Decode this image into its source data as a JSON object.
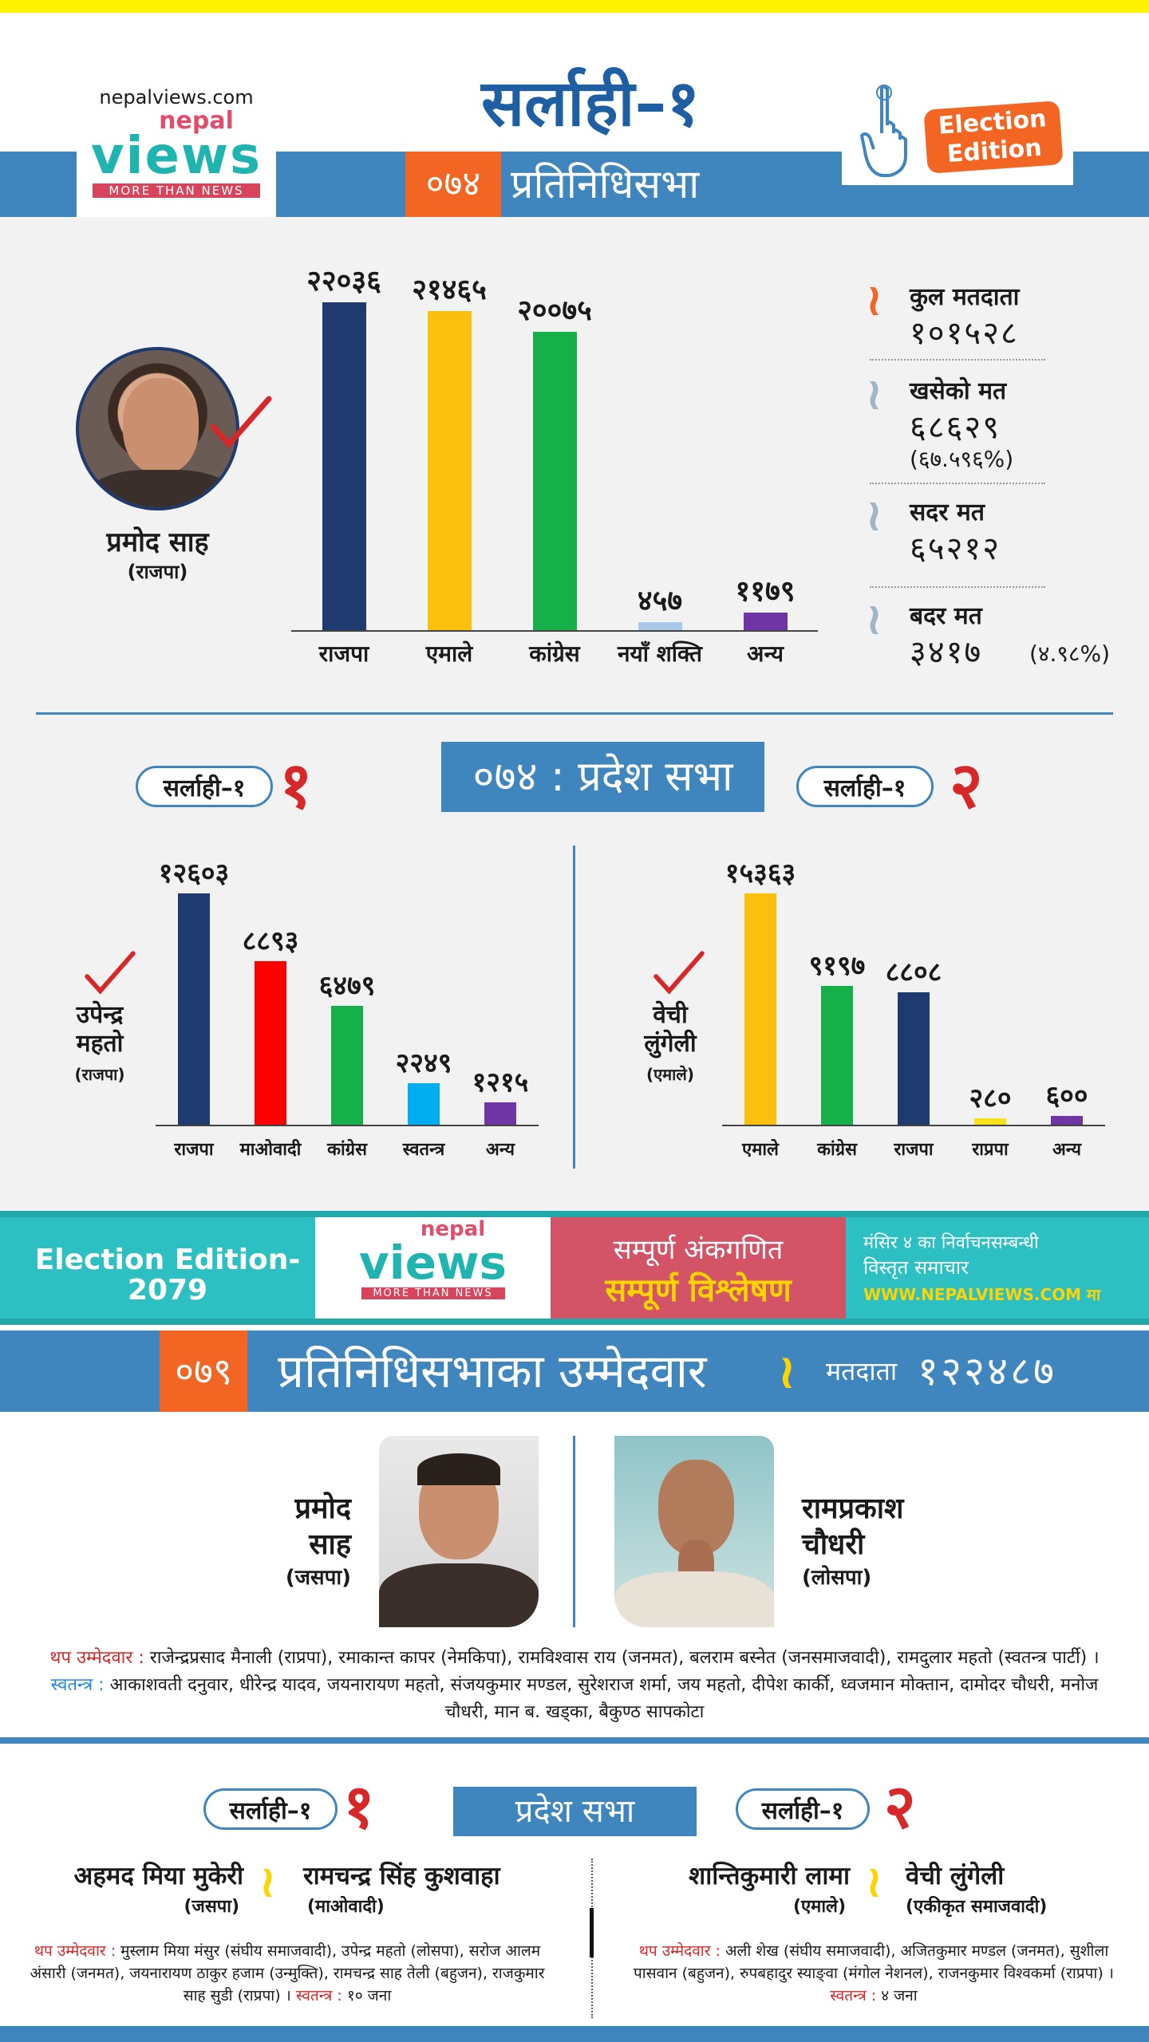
{
  "brand": {
    "site": "nepalviews.com",
    "logo_top": "nepal",
    "logo_main": "views",
    "logo_tag": "MORE THAN NEWS",
    "badge_line1": "Election",
    "badge_line2": "Edition"
  },
  "header": {
    "constituency": "सर्लाही–१",
    "year_tag": "०७४",
    "house": "प्रतिनिधिसभा"
  },
  "winner_2074": {
    "name": "प्रमोद साह",
    "party": "(राजपा)"
  },
  "chart_fed": {
    "type": "bar",
    "categories": [
      "राजपा",
      "एमाले",
      "कांग्रेस",
      "नयाँ शक्ति",
      "अन्य"
    ],
    "value_labels": [
      "२२०३६",
      "२१४६५",
      "२००७५",
      "४५७",
      "११७९"
    ],
    "values": [
      22036,
      21465,
      20075,
      457,
      1179
    ],
    "colors": [
      "#1e3a6e",
      "#fbbf0d",
      "#16b04a",
      "#a9c8ea",
      "#6f35a5"
    ]
  },
  "stats": [
    {
      "label": "कुल मतदाता",
      "value": "१०१५२८",
      "sub": ""
    },
    {
      "label": "खसेको मत",
      "value": "६८६२९",
      "sub": "(६७.५९६%)"
    },
    {
      "label": "सदर मत",
      "value": "६५२१२",
      "sub": ""
    },
    {
      "label": "बदर मत",
      "value": "३४१७",
      "sub": "(४.९८%)"
    }
  ],
  "province_2074": {
    "title": "०७४ : प्रदेश सभा",
    "left": {
      "pill": "सर्लाही–१",
      "num": "१",
      "winner_l1": "उपेन्द्र",
      "winner_l2": "महतो",
      "winner_party": "(राजपा)",
      "chart": {
        "type": "bar",
        "categories": [
          "राजपा",
          "माओवादी",
          "कांग्रेस",
          "स्वतन्त्र",
          "अन्य"
        ],
        "value_labels": [
          "१२६०३",
          "८८९३",
          "६४७९",
          "२२४९",
          "१२१५"
        ],
        "values": [
          12603,
          8893,
          6479,
          2249,
          1215
        ],
        "colors": [
          "#1e3a6e",
          "#ff0000",
          "#16b04a",
          "#00aeef",
          "#6f35a5"
        ]
      }
    },
    "right": {
      "pill": "सर्लाही–१",
      "num": "२",
      "winner_l1": "वेची",
      "winner_l2": "लुंगेली",
      "winner_party": "(एमाले)",
      "chart": {
        "type": "bar",
        "categories": [
          "एमाले",
          "कांग्रेस",
          "राजपा",
          "राप्रपा",
          "अन्य"
        ],
        "value_labels": [
          "१५३६३",
          "९१९७",
          "८८०८",
          "२८०",
          "६००"
        ],
        "values": [
          15363,
          9197,
          8808,
          280,
          600
        ],
        "colors": [
          "#fbbf0d",
          "#16b04a",
          "#1e3a6e",
          "#f7e11b",
          "#6f35a5"
        ]
      }
    }
  },
  "banner": {
    "edition": "Election Edition- 2079",
    "logo_top": "nepal",
    "logo_main": "views",
    "logo_tag": "MORE THAN NEWS",
    "line1": "सम्पूर्ण अंकगणित",
    "line2": "सम्पूर्ण विश्लेषण",
    "right1": "मंसिर ४ का निर्वाचनसम्बन्धी",
    "right2": "विस्तृत समाचार",
    "right3": "WWW.NEPALVIEWS.COM मा"
  },
  "candidates_2079": {
    "year_tag": "०७९",
    "title": "प्रतिनिधिसभाका उम्मेदवार",
    "voters_label": "मतदाता",
    "voters_value": "१२२४८७",
    "c1": {
      "l1": "प्रमोद",
      "l2": "साह",
      "party": "(जसपा)"
    },
    "c2": {
      "l1": "रामप्रकाश",
      "l2": "चौधरी",
      "party": "(लोसपा)"
    },
    "more_label": "थप उम्मेदवार",
    "more_text": "राजेन्द्रप्रसाद मैनाली (राप्रपा), रमाकान्त कापर (नेमकिपा), रामविश्वास राय (जनमत), बलराम बस्नेत (जनसमाजवादी), रामदुलार महतो (स्वतन्त्र पार्टी) ।",
    "ind_label": "स्वतन्त्र",
    "ind_text": "आकाशवती दनुवार, धीरेन्द्र यादव, जयनारायण महतो, संजयकुमार मण्डल, सुरेशराज शर्मा, जय महतो, दीपेश कार्की, ध्वजमान मोक्तान, दामोदर चौधरी, मनोज चौधरी, मान ब. खड्का, बैकुण्ठ सापकोटा"
  },
  "province_2079": {
    "title": "प्रदेश सभा",
    "left": {
      "pill": "सर्लाही–१",
      "num": "१",
      "a_name": "अहमद मिया मुकेरी",
      "a_party": "(जसपा)",
      "b_name": "रामचन्द्र सिंह कुशवाहा",
      "b_party": "(माओवादी)",
      "more_label": "थप उम्मेदवार",
      "more_text": "मुस्लाम मिया मंसुर (संघीय समाजवादी), उपेन्द्र महतो (लोसपा), सरोज आलम अंसारी (जनमत), जयनारायण ठाकुर हजाम (उन्मुक्ति), रामचन्द्र साह तेली (बहुजन), राजकुमार साह सुडी (राप्रपा) ।",
      "ind_label": "स्वतन्त्र",
      "ind_text": "१० जना"
    },
    "right": {
      "pill": "सर्लाही–१",
      "num": "२",
      "a_name": "शान्तिकुमारी लामा",
      "a_party": "(एमाले)",
      "b_name": "वेची लुंगेली",
      "b_party": "(एकीकृत समाजवादी)",
      "more_label": "थप उम्मेदवार",
      "more_text": "अली शेख (संघीय समाजवादी), अजितकुमार मण्डल (जनमत), सुशीला पासवान (बहुजन), रुपबहादुर स्याङ्वा (मंगोल नेशनल), राजनकुमार विश्वकर्मा (राप्रपा) ।",
      "ind_label": "स्वतन्त्र",
      "ind_text": "४ जना"
    }
  }
}
